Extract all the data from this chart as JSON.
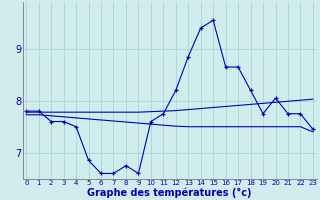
{
  "xlabel": "Graphe des températures (°c)",
  "bg_color": "#d0ecec",
  "grid_color": "#a8d4d4",
  "line_color": "#0000bb",
  "hours": [
    0,
    1,
    2,
    3,
    4,
    5,
    6,
    7,
    8,
    9,
    10,
    11,
    12,
    13,
    14,
    15,
    16,
    17,
    18,
    19,
    20,
    21,
    22,
    23
  ],
  "temps": [
    7.8,
    7.8,
    7.6,
    7.6,
    7.5,
    6.85,
    6.6,
    6.6,
    6.75,
    6.6,
    7.6,
    7.75,
    8.2,
    8.85,
    9.4,
    9.55,
    8.65,
    8.65,
    8.2,
    7.75,
    8.05,
    7.75,
    7.75,
    7.45
  ],
  "trend1": [
    7.78,
    7.78,
    7.78,
    7.78,
    7.78,
    7.78,
    7.78,
    7.78,
    7.78,
    7.78,
    7.79,
    7.8,
    7.81,
    7.83,
    7.85,
    7.87,
    7.89,
    7.91,
    7.93,
    7.95,
    7.97,
    7.99,
    8.01,
    8.03
  ],
  "trend2": [
    7.73,
    7.73,
    7.71,
    7.69,
    7.67,
    7.65,
    7.63,
    7.61,
    7.59,
    7.57,
    7.55,
    7.53,
    7.51,
    7.5,
    7.5,
    7.5,
    7.5,
    7.5,
    7.5,
    7.5,
    7.5,
    7.5,
    7.5,
    7.4
  ],
  "ylim": [
    6.5,
    9.9
  ],
  "yticks": [
    7,
    8,
    9
  ],
  "xlim": [
    -0.3,
    23.3
  ],
  "xlabel_fontsize": 7,
  "xtick_fontsize": 5,
  "ytick_fontsize": 7
}
